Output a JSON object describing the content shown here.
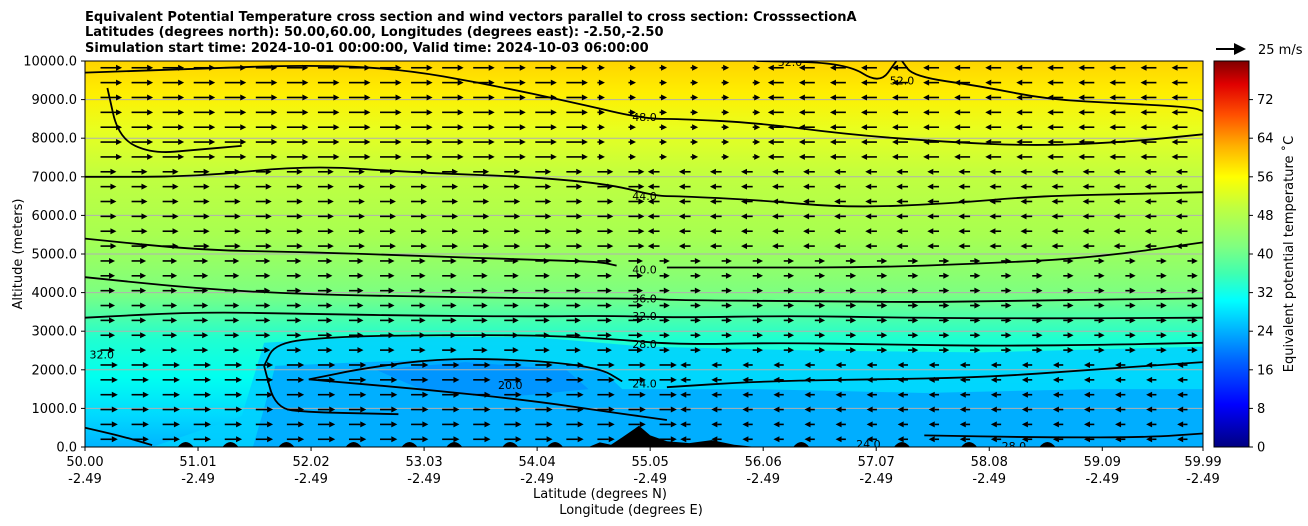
{
  "chart_data": {
    "type": "contourf-cross-section",
    "title_lines": [
      "Equivalent Potential Temperature cross section and wind vectors parallel to cross section: CrosssectionA",
      "Latitudes (degrees north): 50.00,60.00, Longitudes (degrees east): -2.50,-2.50",
      "Simulation start time: 2024-10-01 00:00:00, Valid time: 2024-10-03 06:00:00"
    ],
    "ylabel": "Altitude (meters)",
    "xlabel_lat": "Latitude (degrees N)",
    "xlabel_lon": "Longitude (degrees E)",
    "ylim": [
      0,
      10000
    ],
    "xlim": [
      50.0,
      59.99
    ],
    "yticks": [
      "0.0",
      "1000.0",
      "2000.0",
      "3000.0",
      "4000.0",
      "5000.0",
      "6000.0",
      "7000.0",
      "8000.0",
      "9000.0",
      "10000.0"
    ],
    "xticks_lat": [
      "50.00",
      "51.01",
      "52.02",
      "53.03",
      "54.04",
      "55.05",
      "56.06",
      "57.07",
      "58.08",
      "59.09",
      "59.99"
    ],
    "xticks_lon": [
      "-2.49",
      "-2.49",
      "-2.49",
      "-2.49",
      "-2.49",
      "-2.49",
      "-2.49",
      "-2.49",
      "-2.49",
      "-2.49",
      "-2.49"
    ],
    "colorbar": {
      "label": "Equivalent potential temperature $^\\circ$C",
      "label_text": "Equivalent potential temperature ˚C",
      "range": [
        0,
        80
      ],
      "ticks": [
        "0",
        "8",
        "16",
        "24",
        "32",
        "40",
        "48",
        "56",
        "64",
        "72"
      ]
    },
    "quiver_key": {
      "label": "25 m/s",
      "speed": 25
    },
    "contour_labels": [
      {
        "text": "48.0",
        "lat": 55.0,
        "alt": 8550
      },
      {
        "text": "44.0",
        "lat": 55.0,
        "alt": 6500
      },
      {
        "text": "40.0",
        "lat": 55.0,
        "alt": 4600
      },
      {
        "text": "36.0",
        "lat": 55.0,
        "alt": 3850
      },
      {
        "text": "32.0",
        "lat": 55.0,
        "alt": 3400
      },
      {
        "text": "28.0",
        "lat": 55.0,
        "alt": 2670
      },
      {
        "text": "24.0",
        "lat": 55.0,
        "alt": 1650
      },
      {
        "text": "20.0",
        "lat": 53.8,
        "alt": 1600
      },
      {
        "text": "52.0",
        "lat": 57.3,
        "alt": 9500
      },
      {
        "text": "52.0",
        "lat": 56.3,
        "alt": 9980
      },
      {
        "text": "32.0",
        "lat": 50.15,
        "alt": 2400
      },
      {
        "text": "28.0",
        "lat": 58.3,
        "alt": 30
      },
      {
        "text": "24.0",
        "lat": 57.0,
        "alt": 80
      }
    ],
    "contours": [
      {
        "level": 52,
        "points": [
          [
            56.0,
            10000
          ],
          [
            56.8,
            9950
          ],
          [
            57.1,
            9400
          ],
          [
            57.25,
            10000
          ]
        ]
      },
      {
        "level": 52,
        "points": [
          [
            57.3,
            10000
          ],
          [
            57.4,
            9600
          ],
          [
            58.0,
            9350
          ],
          [
            58.6,
            9000
          ],
          [
            59.3,
            8900
          ],
          [
            59.9,
            8800
          ],
          [
            59.99,
            8700
          ]
        ]
      },
      {
        "level": 48,
        "points": [
          [
            50.0,
            9700
          ],
          [
            51.0,
            9800
          ],
          [
            52.0,
            9900
          ],
          [
            52.8,
            9800
          ],
          [
            53.6,
            9400
          ],
          [
            54.4,
            8900
          ],
          [
            55.0,
            8500
          ],
          [
            55.3,
            8500
          ],
          [
            56.0,
            8400
          ],
          [
            56.8,
            8100
          ],
          [
            57.7,
            7900
          ],
          [
            58.5,
            7800
          ],
          [
            59.3,
            7900
          ],
          [
            59.99,
            8100
          ]
        ]
      },
      {
        "level": 48,
        "points": [
          [
            50.2,
            9300
          ],
          [
            50.3,
            8000
          ],
          [
            50.6,
            7600
          ],
          [
            51.0,
            7700
          ],
          [
            51.4,
            7800
          ]
        ]
      },
      {
        "level": 44,
        "points": [
          [
            50.0,
            7000
          ],
          [
            51.0,
            7000
          ],
          [
            52.0,
            7300
          ],
          [
            53.0,
            7100
          ],
          [
            54.0,
            7000
          ],
          [
            54.7,
            6800
          ],
          [
            55.1,
            6500
          ],
          [
            55.3,
            6500
          ],
          [
            56.0,
            6400
          ],
          [
            56.8,
            6200
          ],
          [
            57.7,
            6300
          ],
          [
            58.5,
            6500
          ],
          [
            59.3,
            6550
          ],
          [
            59.99,
            6600
          ]
        ]
      },
      {
        "level": 40,
        "points": [
          [
            50.0,
            5400
          ],
          [
            51.0,
            5100
          ],
          [
            52.0,
            5050
          ],
          [
            53.0,
            4950
          ],
          [
            54.0,
            4850
          ],
          [
            54.6,
            4800
          ],
          [
            54.75,
            4700
          ]
        ]
      },
      {
        "level": 40,
        "points": [
          [
            55.2,
            4650
          ],
          [
            56.0,
            4650
          ],
          [
            57.0,
            4650
          ],
          [
            58.0,
            4750
          ],
          [
            59.0,
            4900
          ],
          [
            59.99,
            5300
          ]
        ]
      },
      {
        "level": 36,
        "points": [
          [
            50.0,
            4400
          ],
          [
            51.0,
            4100
          ],
          [
            52.0,
            3950
          ],
          [
            53.0,
            3900
          ],
          [
            54.0,
            3850
          ],
          [
            55.0,
            3850
          ],
          [
            55.3,
            3800
          ],
          [
            56.5,
            3780
          ],
          [
            57.5,
            3750
          ],
          [
            58.5,
            3800
          ],
          [
            59.99,
            3850
          ]
        ]
      },
      {
        "level": 32,
        "points": [
          [
            50.0,
            3350
          ],
          [
            51.0,
            3500
          ],
          [
            52.0,
            3450
          ],
          [
            53.0,
            3400
          ],
          [
            54.0,
            3380
          ],
          [
            54.7,
            3400
          ],
          [
            55.3,
            3350
          ],
          [
            56.3,
            3400
          ],
          [
            57.3,
            3350
          ],
          [
            58.5,
            3330
          ],
          [
            59.99,
            3350
          ]
        ]
      },
      {
        "level": 28,
        "points": [
          [
            51.6,
            2100
          ],
          [
            51.7,
            2700
          ],
          [
            52.2,
            2850
          ],
          [
            53.0,
            2900
          ],
          [
            54.0,
            2900
          ],
          [
            54.7,
            2800
          ],
          [
            55.3,
            2650
          ],
          [
            56.2,
            2700
          ],
          [
            57.2,
            2650
          ],
          [
            58.2,
            2620
          ],
          [
            59.2,
            2650
          ],
          [
            59.99,
            2700
          ]
        ]
      },
      {
        "level": 28,
        "points": [
          [
            51.6,
            2100
          ],
          [
            51.7,
            1000
          ],
          [
            52.0,
            900
          ],
          [
            52.8,
            850
          ]
        ]
      },
      {
        "level": 24,
        "points": [
          [
            55.2,
            1550
          ],
          [
            56.0,
            1700
          ],
          [
            57.0,
            1750
          ],
          [
            58.0,
            1800
          ],
          [
            59.0,
            2000
          ],
          [
            59.99,
            2200
          ]
        ]
      },
      {
        "level": 24,
        "points": [
          [
            52.0,
            1750
          ],
          [
            52.5,
            2050
          ],
          [
            53.2,
            2300
          ],
          [
            54.0,
            2250
          ],
          [
            54.6,
            2050
          ],
          [
            54.8,
            1700
          ]
        ]
      },
      {
        "level": 24,
        "points": [
          [
            52.0,
            1750
          ],
          [
            53.0,
            1500
          ],
          [
            54.0,
            1200
          ],
          [
            54.7,
            900
          ],
          [
            55.2,
            700
          ]
        ]
      },
      {
        "level": 24,
        "points": [
          [
            57.5,
            300
          ],
          [
            58.5,
            250
          ],
          [
            59.5,
            250
          ],
          [
            59.99,
            350
          ]
        ]
      },
      {
        "level": 32,
        "points": [
          [
            50.0,
            500
          ],
          [
            50.3,
            300
          ],
          [
            50.6,
            50
          ]
        ]
      }
    ],
    "terrain": [
      [
        54.5,
        0
      ],
      [
        54.6,
        120
      ],
      [
        54.7,
        60
      ],
      [
        54.8,
        250
      ],
      [
        54.95,
        550
      ],
      [
        55.05,
        300
      ],
      [
        55.2,
        150
      ],
      [
        55.4,
        100
      ],
      [
        55.6,
        180
      ],
      [
        55.8,
        60
      ],
      [
        56.0,
        0
      ]
    ]
  }
}
